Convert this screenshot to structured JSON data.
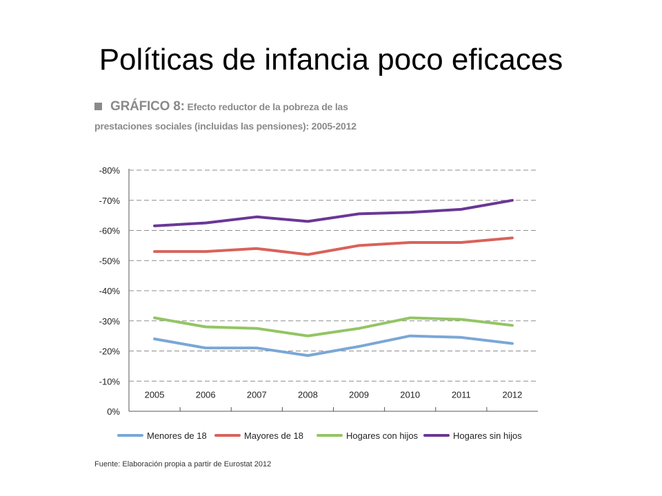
{
  "slide": {
    "title": "Políticas de infancia poco eficaces"
  },
  "figure": {
    "heading_prefix": "GRÁFICO 8:",
    "heading_line1": "Efecto reductor de la pobreza de las",
    "heading_line2": "prestaciones sociales (incluidas las pensiones): 2005-2012",
    "source": "Fuente: Elaboración propia a partir de Eurostat 2012"
  },
  "chart_data": {
    "type": "line",
    "title": "",
    "x": [
      "2005",
      "2006",
      "2007",
      "2008",
      "2009",
      "2010",
      "2011",
      "2012"
    ],
    "y_ticks": [
      "-80%",
      "-70%",
      "-60%",
      "-50%",
      "-40%",
      "-30%",
      "-20%",
      "-10%",
      "0%"
    ],
    "ylim": [
      0,
      -80
    ],
    "grid": true,
    "legend": "bottom",
    "series": [
      {
        "name": "Menores de 18",
        "color": "#7aa7d6",
        "values": [
          -24,
          -21,
          -21,
          -18.5,
          -21.5,
          -25,
          -24.5,
          -22.5
        ]
      },
      {
        "name": "Mayores de 18",
        "color": "#d9625a",
        "values": [
          -53,
          -53,
          -54,
          -52,
          -55,
          -56,
          -56,
          -57.5
        ]
      },
      {
        "name": "Hogares con hijos",
        "color": "#93c563",
        "values": [
          -31,
          -28,
          -27.5,
          -25,
          -27.5,
          -31,
          -30.5,
          -28.5
        ]
      },
      {
        "name": "Hogares sin hijos",
        "color": "#6a3796",
        "values": [
          -61.5,
          -62.5,
          -64.5,
          -63,
          -65.5,
          -66,
          -67,
          -70
        ]
      }
    ]
  }
}
